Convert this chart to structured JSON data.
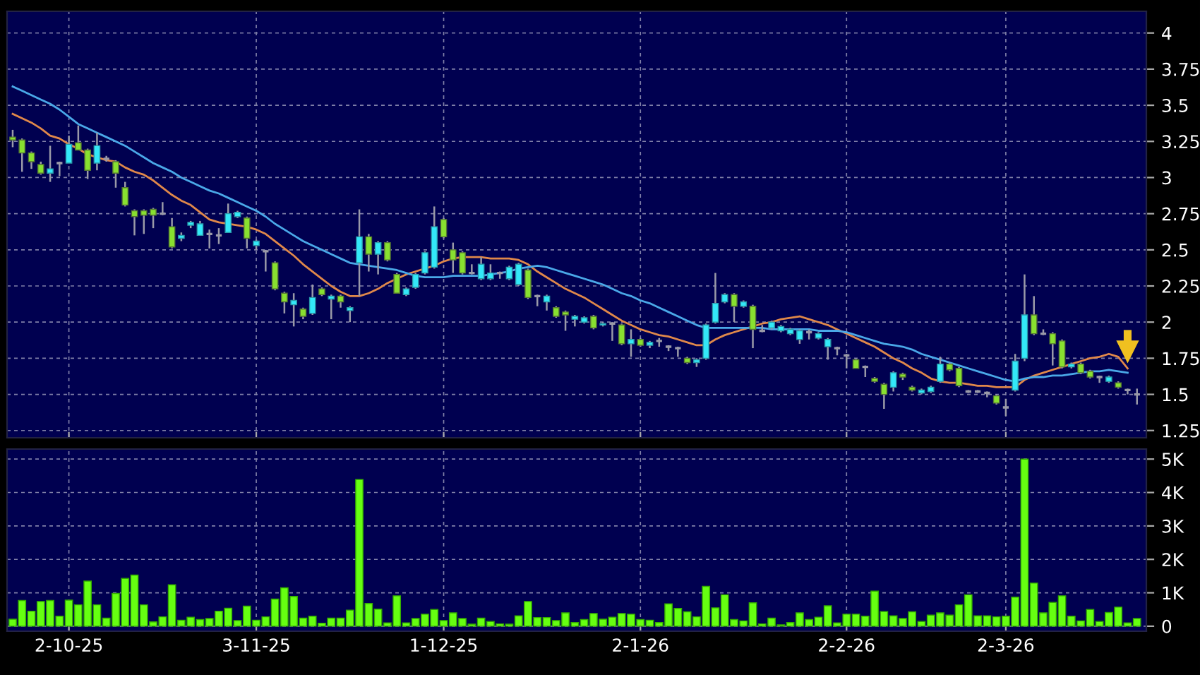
{
  "chart_data": [
    {
      "type": "candlestick",
      "tick_labels": "y",
      "grid": true,
      "categories": [
        null,
        null,
        null,
        null,
        null,
        null,
        null,
        null,
        null,
        null,
        null,
        null,
        null,
        null,
        null,
        null,
        null,
        null,
        null,
        null,
        null,
        null,
        null,
        null,
        null,
        null,
        null,
        null,
        null,
        null,
        null,
        null,
        null,
        null,
        null,
        null,
        null,
        null,
        null,
        null,
        null,
        null,
        null,
        null,
        null,
        null,
        null,
        null,
        null,
        null,
        null,
        null,
        null,
        null,
        null,
        null,
        null,
        null,
        null,
        null,
        null,
        null,
        null,
        null,
        null,
        null,
        null,
        null,
        null,
        null,
        null,
        null,
        null,
        null,
        null,
        null,
        null,
        null,
        null,
        null,
        null,
        null,
        null,
        null,
        null,
        null,
        null,
        null,
        null,
        null,
        null,
        null,
        null,
        null,
        null,
        null,
        null,
        null,
        null,
        null,
        null,
        null,
        null,
        null,
        null,
        null,
        null,
        null,
        null,
        null,
        null,
        null,
        null,
        null,
        null,
        null,
        null,
        null,
        null,
        null,
        null
      ],
      "ylim": [
        1.2,
        4.15
      ],
      "yticks": [
        1.25,
        1.5,
        1.75,
        2,
        2.25,
        2.5,
        2.75,
        3,
        3.25,
        3.5,
        3.75,
        4
      ],
      "ohlc": [
        [
          3.28,
          3.33,
          3.21,
          3.26
        ],
        [
          3.26,
          3.27,
          3.04,
          3.17
        ],
        [
          3.17,
          3.18,
          3.06,
          3.11
        ],
        [
          3.09,
          3.11,
          3.02,
          3.03
        ],
        [
          3.03,
          3.22,
          2.97,
          3.06
        ],
        [
          3.1,
          3.11,
          3.01,
          3.1
        ],
        [
          3.1,
          3.29,
          3.1,
          3.23
        ],
        [
          3.24,
          3.36,
          3.19,
          3.19
        ],
        [
          3.19,
          3.2,
          2.99,
          3.05
        ],
        [
          3.1,
          3.31,
          3.05,
          3.22
        ],
        [
          3.13,
          3.15,
          3.11,
          3.13
        ],
        [
          3.11,
          3.12,
          2.93,
          3.03
        ],
        [
          2.93,
          2.97,
          2.8,
          2.81
        ],
        [
          2.77,
          2.78,
          2.6,
          2.73
        ],
        [
          2.77,
          2.78,
          2.61,
          2.74
        ],
        [
          2.78,
          2.79,
          2.65,
          2.74
        ],
        [
          2.75,
          2.83,
          2.74,
          2.75
        ],
        [
          2.66,
          2.72,
          2.51,
          2.52
        ],
        [
          2.58,
          2.62,
          2.56,
          2.6
        ],
        [
          2.67,
          2.7,
          2.65,
          2.69
        ],
        [
          2.6,
          2.7,
          2.6,
          2.68
        ],
        [
          2.61,
          2.64,
          2.51,
          2.61
        ],
        [
          2.6,
          2.65,
          2.54,
          2.6
        ],
        [
          2.62,
          2.82,
          2.62,
          2.75
        ],
        [
          2.73,
          2.77,
          2.72,
          2.76
        ],
        [
          2.72,
          2.73,
          2.51,
          2.58
        ],
        [
          2.53,
          2.57,
          2.5,
          2.56
        ],
        [
          2.49,
          2.5,
          2.35,
          2.49
        ],
        [
          2.41,
          2.42,
          2.22,
          2.23
        ],
        [
          2.2,
          2.21,
          2.06,
          2.14
        ],
        [
          2.12,
          2.2,
          1.97,
          2.15
        ],
        [
          2.09,
          2.1,
          2.02,
          2.04
        ],
        [
          2.06,
          2.26,
          2.05,
          2.17
        ],
        [
          2.23,
          2.24,
          2.18,
          2.19
        ],
        [
          2.16,
          2.19,
          2.02,
          2.18
        ],
        [
          2.18,
          2.19,
          2.1,
          2.14
        ],
        [
          2.08,
          2.11,
          2,
          2.1
        ],
        [
          2.41,
          2.78,
          2.18,
          2.59
        ],
        [
          2.59,
          2.61,
          2.35,
          2.47
        ],
        [
          2.47,
          2.56,
          2.33,
          2.55
        ],
        [
          2.55,
          2.56,
          2.42,
          2.43
        ],
        [
          2.33,
          2.34,
          2.2,
          2.2
        ],
        [
          2.19,
          2.24,
          2.18,
          2.23
        ],
        [
          2.24,
          2.34,
          2.23,
          2.33
        ],
        [
          2.34,
          2.49,
          2.33,
          2.48
        ],
        [
          2.38,
          2.8,
          2.37,
          2.66
        ],
        [
          2.71,
          2.72,
          2.58,
          2.59
        ],
        [
          2.5,
          2.55,
          2.34,
          2.43
        ],
        [
          2.48,
          2.49,
          2.33,
          2.34
        ],
        [
          2.34,
          2.4,
          2.33,
          2.34
        ],
        [
          2.3,
          2.45,
          2.29,
          2.4
        ],
        [
          2.3,
          2.4,
          2.29,
          2.34
        ],
        [
          2.34,
          2.35,
          2.3,
          2.34
        ],
        [
          2.3,
          2.39,
          2.29,
          2.38
        ],
        [
          2.26,
          2.41,
          2.25,
          2.4
        ],
        [
          2.36,
          2.37,
          2.16,
          2.17
        ],
        [
          2.18,
          2.19,
          2.11,
          2.18
        ],
        [
          2.14,
          2.19,
          2.08,
          2.18
        ],
        [
          2.1,
          2.11,
          2.03,
          2.04
        ],
        [
          2.07,
          2.08,
          1.94,
          2.05
        ],
        [
          2.02,
          2.05,
          1.97,
          2.04
        ],
        [
          2,
          2.04,
          1.99,
          2.03
        ],
        [
          2.04,
          2.05,
          1.95,
          1.96
        ],
        [
          1.98,
          2,
          1.97,
          1.99
        ],
        [
          1.99,
          2,
          1.87,
          1.99
        ],
        [
          1.98,
          1.99,
          1.84,
          1.85
        ],
        [
          1.85,
          1.95,
          1.76,
          1.88
        ],
        [
          1.88,
          1.89,
          1.83,
          1.84
        ],
        [
          1.84,
          1.87,
          1.82,
          1.86
        ],
        [
          1.87,
          1.89,
          1.83,
          1.87
        ],
        [
          1.83,
          1.84,
          1.8,
          1.83
        ],
        [
          1.82,
          1.83,
          1.76,
          1.82
        ],
        [
          1.75,
          1.76,
          1.71,
          1.72
        ],
        [
          1.72,
          1.75,
          1.69,
          1.74
        ],
        [
          1.75,
          1.99,
          1.74,
          1.98
        ],
        [
          2,
          2.34,
          1.99,
          2.13
        ],
        [
          2.14,
          2.2,
          2.13,
          2.19
        ],
        [
          2.19,
          2.2,
          2,
          2.11
        ],
        [
          2.11,
          2.15,
          2.1,
          2.14
        ],
        [
          2.11,
          2.12,
          1.82,
          1.95
        ],
        [
          1.94,
          1.98,
          1.93,
          1.94
        ],
        [
          1.96,
          2.01,
          1.95,
          2
        ],
        [
          1.94,
          1.98,
          1.93,
          1.97
        ],
        [
          1.92,
          1.96,
          1.91,
          1.95
        ],
        [
          1.88,
          1.95,
          1.85,
          1.94
        ],
        [
          1.93,
          1.95,
          1.88,
          1.93
        ],
        [
          1.89,
          1.93,
          1.88,
          1.92
        ],
        [
          1.83,
          1.89,
          1.74,
          1.88
        ],
        [
          1.82,
          1.83,
          1.77,
          1.82
        ],
        [
          1.77,
          1.78,
          1.68,
          1.77
        ],
        [
          1.74,
          1.75,
          1.68,
          1.68
        ],
        [
          1.69,
          1.7,
          1.62,
          1.69
        ],
        [
          1.61,
          1.62,
          1.58,
          1.59
        ],
        [
          1.57,
          1.58,
          1.4,
          1.5
        ],
        [
          1.55,
          1.66,
          1.52,
          1.65
        ],
        [
          1.64,
          1.65,
          1.6,
          1.62
        ],
        [
          1.55,
          1.56,
          1.52,
          1.53
        ],
        [
          1.51,
          1.54,
          1.5,
          1.53
        ],
        [
          1.52,
          1.56,
          1.51,
          1.55
        ],
        [
          1.59,
          1.76,
          1.58,
          1.71
        ],
        [
          1.71,
          1.72,
          1.66,
          1.67
        ],
        [
          1.68,
          1.69,
          1.55,
          1.56
        ],
        [
          1.52,
          1.53,
          1.51,
          1.52
        ],
        [
          1.52,
          1.53,
          1.51,
          1.52
        ],
        [
          1.51,
          1.52,
          1.48,
          1.51
        ],
        [
          1.49,
          1.5,
          1.43,
          1.44
        ],
        [
          1.41,
          1.47,
          1.35,
          1.41
        ],
        [
          1.53,
          1.78,
          1.52,
          1.73
        ],
        [
          1.75,
          2.33,
          1.73,
          2.05
        ],
        [
          2.05,
          2.18,
          1.91,
          1.92
        ],
        [
          1.92,
          1.95,
          1.91,
          1.92
        ],
        [
          1.92,
          1.93,
          1.7,
          1.85
        ],
        [
          1.87,
          1.88,
          1.68,
          1.69
        ],
        [
          1.69,
          1.72,
          1.68,
          1.71
        ],
        [
          1.71,
          1.72,
          1.64,
          1.65
        ],
        [
          1.66,
          1.67,
          1.61,
          1.62
        ],
        [
          1.62,
          1.63,
          1.58,
          1.62
        ],
        [
          1.59,
          1.63,
          1.58,
          1.62
        ],
        [
          1.58,
          1.59,
          1.54,
          1.55
        ],
        [
          1.53,
          1.54,
          1.5,
          1.53
        ],
        [
          1.5,
          1.54,
          1.43,
          1.5
        ]
      ],
      "series": [
        {
          "type": "line",
          "color": "#e0884a",
          "values": [
            3.44,
            3.41,
            3.38,
            3.34,
            3.29,
            3.27,
            3.23,
            3.2,
            3.16,
            3.14,
            3.12,
            3.11,
            3.07,
            3.04,
            3.02,
            2.98,
            2.93,
            2.88,
            2.84,
            2.81,
            2.76,
            2.71,
            2.69,
            2.68,
            2.67,
            2.66,
            2.64,
            2.61,
            2.56,
            2.51,
            2.46,
            2.4,
            2.35,
            2.3,
            2.25,
            2.21,
            2.18,
            2.18,
            2.2,
            2.23,
            2.27,
            2.3,
            2.33,
            2.35,
            2.37,
            2.39,
            2.42,
            2.44,
            2.45,
            2.45,
            2.45,
            2.44,
            2.44,
            2.44,
            2.43,
            2.4,
            2.35,
            2.31,
            2.27,
            2.23,
            2.2,
            2.17,
            2.13,
            2.09,
            2.05,
            2.01,
            1.98,
            1.95,
            1.93,
            1.91,
            1.9,
            1.88,
            1.86,
            1.84,
            1.84,
            1.88,
            1.91,
            1.93,
            1.95,
            1.97,
            1.99,
            2,
            2.02,
            2.03,
            2.04,
            2.02,
            2,
            1.98,
            1.95,
            1.92,
            1.89,
            1.86,
            1.83,
            1.79,
            1.75,
            1.72,
            1.68,
            1.65,
            1.61,
            1.59,
            1.58,
            1.58,
            1.57,
            1.56,
            1.56,
            1.55,
            1.55,
            1.55,
            1.6,
            1.63,
            1.65,
            1.67,
            1.69,
            1.71,
            1.73,
            1.75,
            1.76,
            1.78,
            1.76,
            1.68,
            null
          ]
        },
        {
          "type": "line",
          "color": "#4aa8e8",
          "values": [
            3.63,
            3.6,
            3.57,
            3.54,
            3.51,
            3.47,
            3.42,
            3.37,
            3.34,
            3.31,
            3.28,
            3.25,
            3.22,
            3.18,
            3.14,
            3.1,
            3.07,
            3.04,
            3,
            2.97,
            2.94,
            2.91,
            2.89,
            2.86,
            2.83,
            2.8,
            2.77,
            2.73,
            2.68,
            2.64,
            2.6,
            2.56,
            2.53,
            2.5,
            2.47,
            2.44,
            2.41,
            2.4,
            2.39,
            2.38,
            2.37,
            2.36,
            2.34,
            2.32,
            2.31,
            2.31,
            2.31,
            2.32,
            2.32,
            2.32,
            2.32,
            2.33,
            2.34,
            2.35,
            2.37,
            2.38,
            2.39,
            2.38,
            2.36,
            2.34,
            2.32,
            2.3,
            2.28,
            2.26,
            2.23,
            2.2,
            2.18,
            2.15,
            2.13,
            2.1,
            2.07,
            2.04,
            2.01,
            1.98,
            1.96,
            1.96,
            1.96,
            1.96,
            1.96,
            1.96,
            1.96,
            1.95,
            1.95,
            1.95,
            1.95,
            1.95,
            1.94,
            1.94,
            1.94,
            1.93,
            1.91,
            1.89,
            1.87,
            1.85,
            1.84,
            1.83,
            1.81,
            1.78,
            1.76,
            1.74,
            1.72,
            1.7,
            1.68,
            1.66,
            1.64,
            1.62,
            1.6,
            1.59,
            1.61,
            1.62,
            1.62,
            1.63,
            1.63,
            1.64,
            1.65,
            1.66,
            1.66,
            1.67,
            1.66,
            1.65,
            null
          ]
        }
      ]
    },
    {
      "type": "bar",
      "grid": true,
      "color": "#66ff11",
      "categories": [
        null,
        null,
        null,
        null,
        null,
        null,
        "2-10-25",
        null,
        null,
        null,
        null,
        null,
        null,
        null,
        null,
        null,
        null,
        null,
        null,
        null,
        null,
        null,
        null,
        null,
        null,
        null,
        "3-11-25",
        null,
        null,
        null,
        null,
        null,
        null,
        null,
        null,
        null,
        null,
        null,
        null,
        null,
        null,
        null,
        null,
        null,
        null,
        null,
        "1-12-25",
        null,
        null,
        null,
        null,
        null,
        null,
        null,
        null,
        null,
        null,
        null,
        null,
        null,
        null,
        null,
        null,
        null,
        null,
        null,
        null,
        "2-1-26",
        null,
        null,
        null,
        null,
        null,
        null,
        null,
        null,
        null,
        null,
        null,
        null,
        null,
        null,
        null,
        null,
        null,
        null,
        null,
        null,
        null,
        "2-2-26",
        null,
        null,
        null,
        null,
        null,
        null,
        null,
        null,
        null,
        null,
        null,
        null,
        null,
        null,
        null,
        null,
        "2-3-26",
        null,
        null,
        null,
        null,
        null,
        null,
        null,
        null,
        null,
        null,
        null,
        null,
        null,
        null
      ],
      "ylim": [
        -150,
        5300
      ],
      "yticks": [
        0,
        {
          "value": 1000,
          "label": "1K"
        },
        {
          "value": 2000,
          "label": "2K"
        },
        {
          "value": 3000,
          "label": "3K"
        },
        {
          "value": 4000,
          "label": "4K"
        },
        {
          "value": 5000,
          "label": "5K"
        }
      ],
      "values": [
        210,
        770,
        450,
        740,
        770,
        300,
        780,
        640,
        1350,
        640,
        240,
        980,
        1430,
        1530,
        640,
        130,
        280,
        1240,
        180,
        270,
        200,
        230,
        450,
        540,
        170,
        600,
        180,
        280,
        810,
        1150,
        890,
        240,
        300,
        90,
        240,
        240,
        480,
        4390,
        680,
        510,
        100,
        910,
        100,
        230,
        360,
        500,
        170,
        400,
        230,
        60,
        240,
        140,
        70,
        60,
        310,
        740,
        260,
        260,
        170,
        400,
        110,
        200,
        380,
        210,
        270,
        380,
        360,
        200,
        180,
        110,
        670,
        530,
        430,
        280,
        1190,
        550,
        940,
        200,
        160,
        700,
        70,
        240,
        40,
        110,
        400,
        200,
        270,
        610,
        100,
        360,
        360,
        300,
        1050,
        440,
        310,
        230,
        430,
        140,
        330,
        400,
        330,
        640,
        940,
        310,
        310,
        280,
        300,
        870,
        5000,
        1290,
        400,
        710,
        910,
        300,
        160,
        500,
        140,
        410,
        570,
        100,
        230
      ]
    }
  ]
}
